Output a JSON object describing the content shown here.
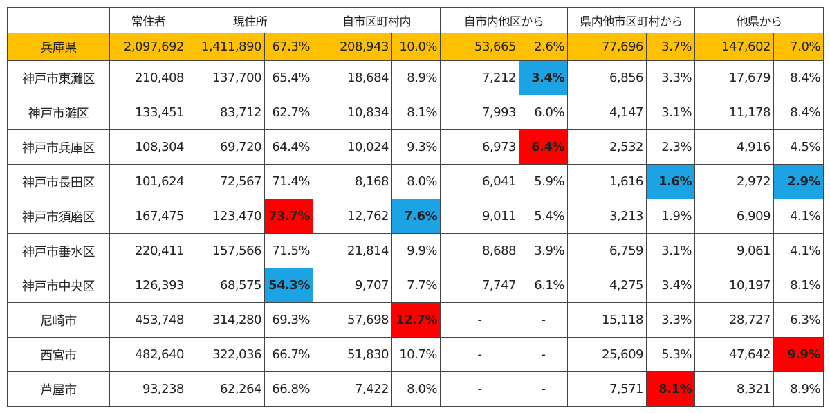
{
  "header": {
    "labels": [
      "常住者",
      "現住所",
      "自市区町村内",
      "自市内他区から",
      "県内他市区町村から",
      "他県から"
    ]
  },
  "table": {
    "rows": [
      {
        "name": "兵庫県",
        "cells": [
          "2,097,692",
          "1,411,890",
          "67.3%",
          "208,943",
          "10.0%",
          "53,665",
          "2.6%",
          "77,696",
          "3.7%",
          "147,602",
          "7.0%"
        ]
      },
      {
        "name": "神戸市東灘区",
        "cells": [
          "210,408",
          "137,700",
          "65.4%",
          "18,684",
          "8.9%",
          "7,212",
          {
            "text": "3.4%",
            "color": "#1ca3e3"
          },
          "6,856",
          "3.3%",
          "17,679",
          "8.4%"
        ]
      },
      {
        "name": "神戸市灘区",
        "cells": [
          "133,451",
          "83,712",
          "62.7%",
          "10,834",
          "8.1%",
          "7,993",
          "6.0%",
          "4,147",
          "3.1%",
          "11,178",
          "8.4%"
        ]
      },
      {
        "name": "神戸市兵庫区",
        "cells": [
          "108,304",
          "69,720",
          "64.4%",
          "10,024",
          "9.3%",
          "6,973",
          {
            "text": "6.4%",
            "color": "#ff0000"
          },
          "2,532",
          "2.3%",
          "4,916",
          "4.5%"
        ]
      },
      {
        "name": "神戸市長田区",
        "cells": [
          "101,624",
          "72,567",
          "71.4%",
          "8,168",
          "8.0%",
          "6,041",
          "5.9%",
          "1,616",
          {
            "text": "1.6%",
            "color": "#1ca3e3"
          },
          "2,972",
          {
            "text": "2.9%",
            "color": "#1ca3e3"
          }
        ]
      },
      {
        "name": "神戸市須磨区",
        "cells": [
          "167,475",
          "123,470",
          {
            "text": "73.7%",
            "color": "#ff0000"
          },
          "12,762",
          {
            "text": "7.6%",
            "color": "#1ca3e3"
          },
          "9,011",
          "5.4%",
          "3,213",
          "1.9%",
          "6,909",
          "4.1%"
        ]
      },
      {
        "name": "神戸市垂水区",
        "cells": [
          "220,411",
          "157,566",
          "71.5%",
          "21,814",
          "9.9%",
          "8,688",
          "3.9%",
          "6,759",
          "3.1%",
          "9,061",
          "4.1%"
        ]
      },
      {
        "name": "神戸市中央区",
        "cells": [
          "126,393",
          "68,575",
          {
            "text": "54.3%",
            "color": "#1ca3e3"
          },
          "9,707",
          "7.7%",
          "7,747",
          "6.1%",
          "4,275",
          "3.4%",
          "10,197",
          "8.1%"
        ]
      },
      {
        "name": "尼崎市",
        "cells": [
          "453,748",
          "314,280",
          "69.3%",
          "57,698",
          {
            "text": "12.7%",
            "color": "#ff0000"
          },
          "-",
          "-",
          "15,118",
          "3.3%",
          "28,727",
          "6.3%"
        ]
      },
      {
        "name": "西宮市",
        "cells": [
          "482,640",
          "322,036",
          "66.7%",
          "51,830",
          "10.7%",
          "-",
          "-",
          "25,609",
          "5.3%",
          "47,642",
          {
            "text": "9.9%",
            "color": "#ff0000"
          }
        ]
      },
      {
        "name": "芦屋市",
        "cells": [
          "93,238",
          "62,264",
          "66.8%",
          "7,422",
          "8.0%",
          "-",
          "-",
          "7,571",
          {
            "text": "8.1%",
            "color": "#ff0000"
          },
          "8,321",
          "8.9%"
        ]
      }
    ]
  }
}
